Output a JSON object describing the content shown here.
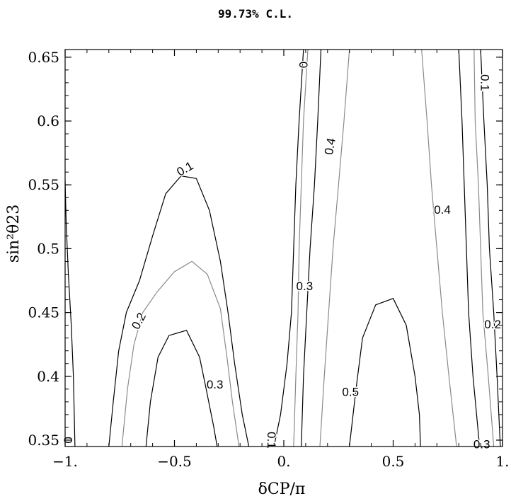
{
  "chart_data": {
    "type": "contour",
    "title": "99.73% C.L.",
    "xlabel": "δCP/π",
    "ylabel": "sin²θ23",
    "xlim": [
      -1.0,
      1.0
    ],
    "ylim": [
      0.345,
      0.656
    ],
    "x_ticks": [
      "-1.",
      "-0.5",
      "0.",
      "0.5",
      "1."
    ],
    "y_ticks": [
      "0.35",
      "0.4",
      "0.45",
      "0.5",
      "0.55",
      "0.6",
      "0.65"
    ],
    "colors": {
      "dark": "#000000",
      "gray": "#8a8a8a"
    },
    "contours": [
      {
        "level": "0",
        "color": "dark",
        "points": [
          [
            -1.0,
            0.553
          ],
          [
            -0.995,
            0.52
          ],
          [
            -0.985,
            0.48
          ],
          [
            -0.972,
            0.44
          ],
          [
            -0.962,
            0.4
          ],
          [
            -0.955,
            0.345
          ]
        ]
      },
      {
        "level": "0.1",
        "color": "dark",
        "points": [
          [
            -0.8,
            0.345
          ],
          [
            -0.78,
            0.38
          ],
          [
            -0.755,
            0.42
          ],
          [
            -0.72,
            0.45
          ],
          [
            -0.66,
            0.475
          ],
          [
            -0.6,
            0.51
          ],
          [
            -0.54,
            0.543
          ],
          [
            -0.47,
            0.557
          ],
          [
            -0.4,
            0.555
          ],
          [
            -0.34,
            0.53
          ],
          [
            -0.29,
            0.49
          ],
          [
            -0.255,
            0.45
          ],
          [
            -0.225,
            0.41
          ],
          [
            -0.19,
            0.37
          ],
          [
            -0.16,
            0.345
          ]
        ]
      },
      {
        "level": "0.2",
        "color": "gray",
        "points": [
          [
            -0.74,
            0.345
          ],
          [
            -0.715,
            0.39
          ],
          [
            -0.685,
            0.425
          ],
          [
            -0.645,
            0.45
          ],
          [
            -0.58,
            0.466
          ],
          [
            -0.5,
            0.482
          ],
          [
            -0.42,
            0.49
          ],
          [
            -0.35,
            0.48
          ],
          [
            -0.29,
            0.453
          ],
          [
            -0.26,
            0.415
          ],
          [
            -0.235,
            0.38
          ],
          [
            -0.205,
            0.345
          ]
        ]
      },
      {
        "level": "0.3",
        "color": "dark",
        "points": [
          [
            -0.63,
            0.345
          ],
          [
            -0.61,
            0.38
          ],
          [
            -0.575,
            0.415
          ],
          [
            -0.525,
            0.432
          ],
          [
            -0.445,
            0.436
          ],
          [
            -0.385,
            0.415
          ],
          [
            -0.355,
            0.39
          ],
          [
            -0.32,
            0.36
          ],
          [
            -0.305,
            0.345
          ]
        ]
      },
      {
        "level": "0",
        "color": "dark",
        "points": [
          [
            0.09,
            0.656
          ],
          [
            0.07,
            0.6
          ],
          [
            0.055,
            0.55
          ],
          [
            0.045,
            0.5
          ],
          [
            0.035,
            0.45
          ],
          [
            0.015,
            0.41
          ],
          [
            -0.015,
            0.37
          ],
          [
            -0.045,
            0.345
          ]
        ]
      },
      {
        "level": "0.1",
        "color": "gray",
        "points": [
          [
            0.11,
            0.656
          ],
          [
            0.09,
            0.6
          ],
          [
            0.08,
            0.55
          ],
          [
            0.07,
            0.5
          ],
          [
            0.065,
            0.45
          ],
          [
            0.055,
            0.4
          ],
          [
            0.045,
            0.345
          ]
        ]
      },
      {
        "level": "0.3",
        "color": "dark",
        "points": [
          [
            0.17,
            0.656
          ],
          [
            0.155,
            0.6
          ],
          [
            0.14,
            0.55
          ],
          [
            0.12,
            0.5
          ],
          [
            0.105,
            0.45
          ],
          [
            0.09,
            0.4
          ],
          [
            0.08,
            0.345
          ]
        ]
      },
      {
        "level": "0.4",
        "color": "gray",
        "points": [
          [
            0.3,
            0.656
          ],
          [
            0.275,
            0.6
          ],
          [
            0.25,
            0.55
          ],
          [
            0.225,
            0.5
          ],
          [
            0.205,
            0.45
          ],
          [
            0.185,
            0.4
          ],
          [
            0.165,
            0.345
          ]
        ]
      },
      {
        "level": "0.5",
        "color": "dark",
        "points": [
          [
            0.3,
            0.345
          ],
          [
            0.33,
            0.39
          ],
          [
            0.36,
            0.43
          ],
          [
            0.42,
            0.456
          ],
          [
            0.5,
            0.461
          ],
          [
            0.56,
            0.44
          ],
          [
            0.6,
            0.4
          ],
          [
            0.62,
            0.37
          ],
          [
            0.625,
            0.345
          ]
        ]
      },
      {
        "level": "0.4",
        "color": "gray",
        "points": [
          [
            0.63,
            0.656
          ],
          [
            0.655,
            0.6
          ],
          [
            0.675,
            0.55
          ],
          [
            0.7,
            0.5
          ],
          [
            0.725,
            0.45
          ],
          [
            0.755,
            0.4
          ],
          [
            0.79,
            0.345
          ]
        ]
      },
      {
        "level": "0.3",
        "color": "dark",
        "points": [
          [
            0.8,
            0.656
          ],
          [
            0.815,
            0.6
          ],
          [
            0.825,
            0.55
          ],
          [
            0.835,
            0.5
          ],
          [
            0.845,
            0.45
          ],
          [
            0.865,
            0.4
          ],
          [
            0.895,
            0.345
          ]
        ]
      },
      {
        "level": "0.2",
        "color": "gray",
        "points": [
          [
            0.87,
            0.656
          ],
          [
            0.875,
            0.6
          ],
          [
            0.89,
            0.55
          ],
          [
            0.9,
            0.5
          ],
          [
            0.91,
            0.45
          ],
          [
            0.935,
            0.4
          ],
          [
            0.96,
            0.345
          ]
        ]
      },
      {
        "level": "0.1",
        "color": "dark",
        "points": [
          [
            0.9,
            0.656
          ],
          [
            0.915,
            0.6
          ],
          [
            0.93,
            0.55
          ],
          [
            0.94,
            0.5
          ],
          [
            0.96,
            0.45
          ],
          [
            0.975,
            0.4
          ],
          [
            0.99,
            0.345
          ]
        ]
      }
    ],
    "contour_labels": [
      {
        "text": "0.1",
        "x": -0.45,
        "y": 0.562,
        "rotate": -30
      },
      {
        "text": "0.2",
        "x": -0.66,
        "y": 0.443,
        "rotate": -62
      },
      {
        "text": "0.3",
        "x": -0.315,
        "y": 0.393,
        "rotate": 0
      },
      {
        "text": "0",
        "x": 0.085,
        "y": 0.644,
        "rotate": 90
      },
      {
        "text": "0.4",
        "x": 0.215,
        "y": 0.58,
        "rotate": -80
      },
      {
        "text": "0.3",
        "x": 0.095,
        "y": 0.47,
        "rotate": 0
      },
      {
        "text": "0.1",
        "x": -0.06,
        "y": 0.35,
        "rotate": 90
      },
      {
        "text": "0.5",
        "x": 0.305,
        "y": 0.387,
        "rotate": 0
      },
      {
        "text": "0.4",
        "x": 0.725,
        "y": 0.53,
        "rotate": 0
      },
      {
        "text": "0.1",
        "x": 0.915,
        "y": 0.63,
        "rotate": 90
      },
      {
        "text": "0.2",
        "x": 0.955,
        "y": 0.44,
        "rotate": 0
      },
      {
        "text": "0.3",
        "x": 0.905,
        "y": 0.346,
        "rotate": 0
      },
      {
        "text": "0",
        "x": -0.99,
        "y": 0.35,
        "rotate": 90
      }
    ]
  }
}
